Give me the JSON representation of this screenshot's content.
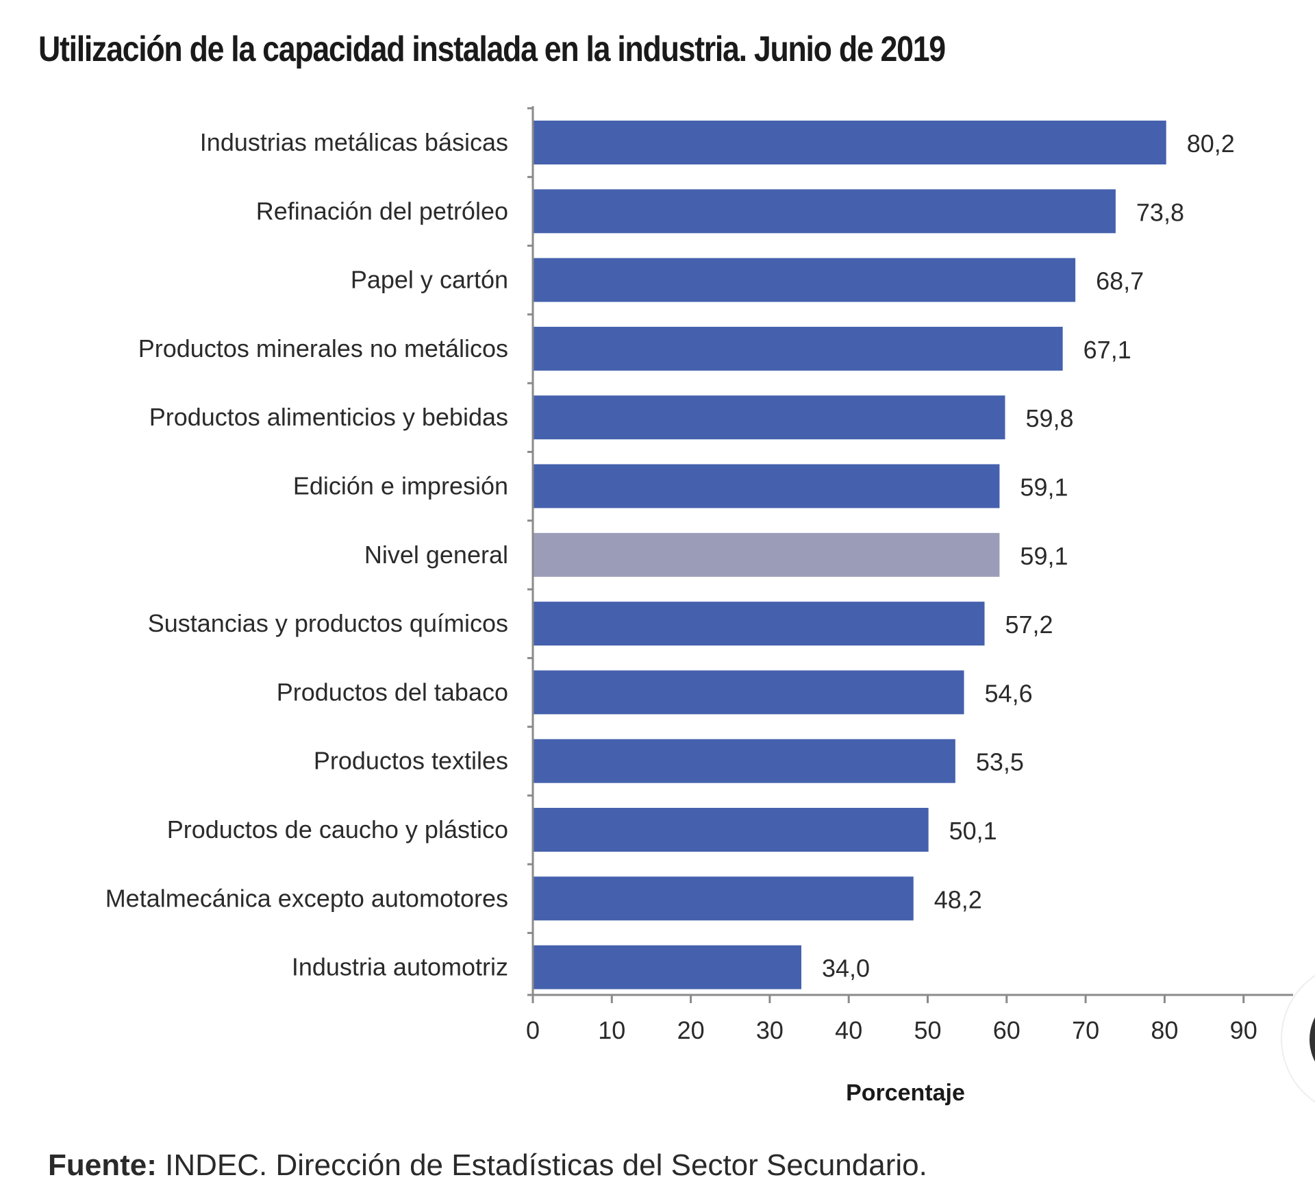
{
  "title": "Utilización de la capacidad instalada en la industria. Junio de 2019",
  "source": {
    "prefix": "Fuente:",
    "text": " INDEC. Dirección de Estadísticas del Sector Secundario."
  },
  "colors": {
    "bar": "#4561ad",
    "highlight_bar": "#9b9db8",
    "axis": "#8a8a8a"
  },
  "chart_data": {
    "type": "bar",
    "orientation": "horizontal",
    "title": "Utilización de la capacidad instalada en la industria. Junio de 2019",
    "xlabel": "Porcentaje",
    "ylabel": "",
    "xlim": [
      0,
      95
    ],
    "xticks": [
      0,
      10,
      20,
      30,
      40,
      50,
      60,
      70,
      80,
      90
    ],
    "grid": false,
    "legend": "none",
    "highlighted_category": "Nivel general",
    "categories": [
      "Industrias metálicas básicas",
      "Refinación del petróleo",
      "Papel y cartón",
      "Productos minerales no metálicos",
      "Productos alimenticios y bebidas",
      "Edición e impresión",
      "Nivel general",
      "Sustancias y productos químicos",
      "Productos del tabaco",
      "Productos textiles",
      "Productos de caucho y plástico",
      "Metalmecánica excepto automotores",
      "Industria automotriz"
    ],
    "values": [
      80.2,
      73.8,
      68.7,
      67.1,
      59.8,
      59.1,
      59.1,
      57.2,
      54.6,
      53.5,
      50.1,
      48.2,
      34.0
    ],
    "value_labels": [
      "80,2",
      "73,8",
      "68,7",
      "67,1",
      "59,8",
      "59,1",
      "59,1",
      "57,2",
      "54,6",
      "53,5",
      "50,1",
      "48,2",
      "34,0"
    ]
  }
}
